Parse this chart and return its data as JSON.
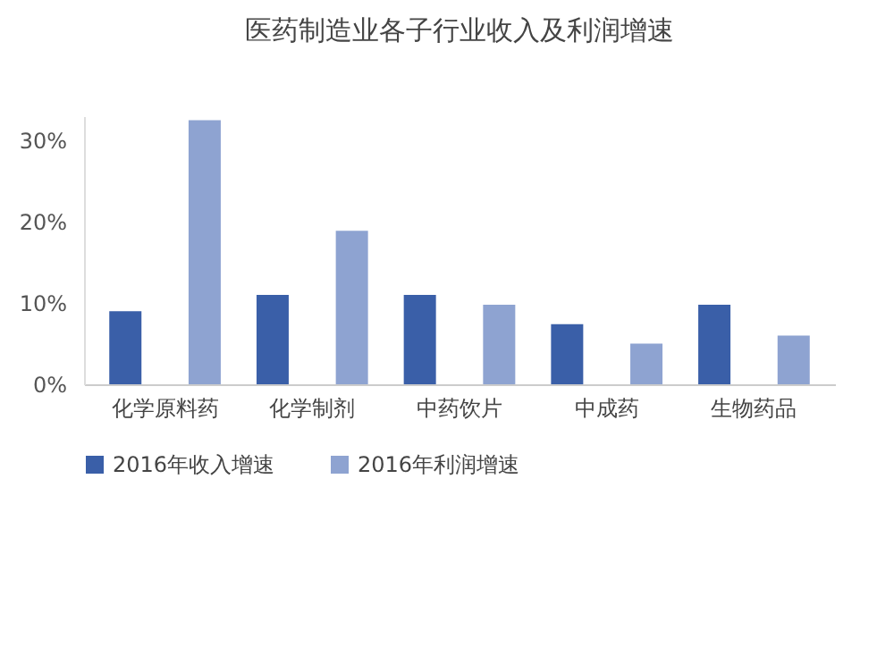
{
  "chart_data": {
    "type": "bar",
    "title": "医药制造业各子行业收入及利润增速",
    "categories": [
      "化学原料药",
      "化学制剂",
      "中药饮片",
      "中成药",
      "生物药品"
    ],
    "series": [
      {
        "name": "2016年收入增速",
        "color": "#3a5fa8",
        "values": [
          9.0,
          11.0,
          11.0,
          7.4,
          9.8
        ]
      },
      {
        "name": "2016年利润增速",
        "color": "#8ea3d1",
        "values": [
          32.5,
          18.9,
          9.8,
          5.0,
          6.0
        ]
      }
    ],
    "ylim": [
      0,
      33
    ],
    "yticks": [
      {
        "value": 0,
        "label": "0%"
      },
      {
        "value": 10,
        "label": "10%"
      },
      {
        "value": 20,
        "label": "20%"
      },
      {
        "value": 30,
        "label": "30%"
      }
    ],
    "grid": false,
    "legend": "bottom"
  }
}
